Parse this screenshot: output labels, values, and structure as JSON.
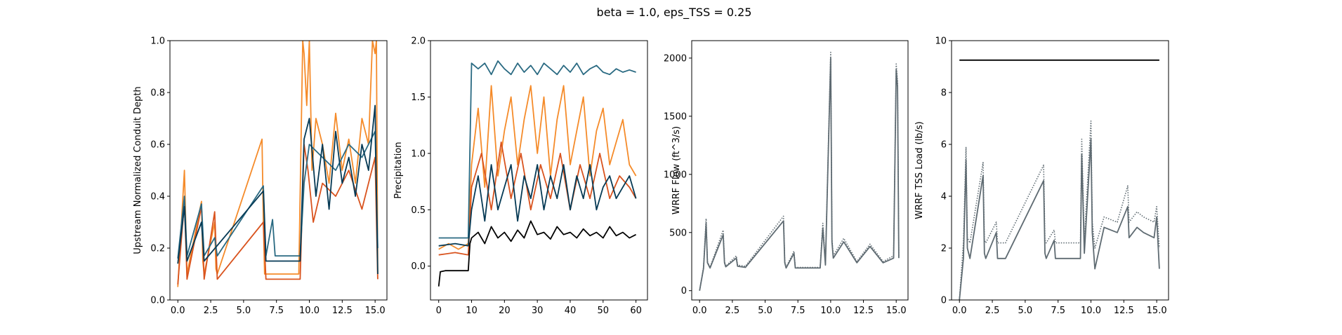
{
  "figure": {
    "title": "beta = 1.0, eps_TSS = 0.25"
  },
  "colors": {
    "orange": "#f58b2a",
    "dark_orange": "#d9531e",
    "teal": "#2a6a82",
    "navy": "#063a55",
    "black": "#000000",
    "gray": "#5f6b72"
  },
  "chart_data": [
    {
      "type": "line",
      "ylabel": "Upstream Normalized Conduit Depth",
      "xlabel": "",
      "xlim": [
        -0.6,
        15.9
      ],
      "ylim": [
        0.0,
        1.0
      ],
      "xticks": [
        0.0,
        2.5,
        5.0,
        7.5,
        10.0,
        12.5,
        15.0
      ],
      "xtick_labels": [
        "0.0",
        "2.5",
        "5.0",
        "7.5",
        "10.0",
        "12.5",
        "15.0"
      ],
      "yticks": [
        0.0,
        0.2,
        0.4,
        0.6,
        0.8,
        1.0
      ],
      "ytick_labels": [
        "0.0",
        "0.2",
        "0.4",
        "0.6",
        "0.8",
        "1.0"
      ],
      "series": [
        {
          "color_key": "orange",
          "style": "solid",
          "x": [
            0.0,
            0.5,
            0.6,
            0.7,
            1.8,
            1.9,
            2.0,
            2.8,
            2.9,
            3.0,
            6.4,
            6.5,
            6.6,
            9.2,
            9.5,
            9.6,
            9.8,
            10.0,
            10.2,
            10.5,
            11.0,
            11.5,
            12.0,
            12.5,
            13.0,
            13.5,
            14.0,
            14.5,
            14.8,
            15.0,
            15.1,
            15.2
          ],
          "y": [
            0.05,
            0.5,
            0.3,
            0.1,
            0.38,
            0.15,
            0.1,
            0.3,
            0.12,
            0.1,
            0.62,
            0.3,
            0.1,
            0.1,
            1.0,
            0.95,
            0.75,
            1.0,
            0.5,
            0.7,
            0.6,
            0.45,
            0.72,
            0.5,
            0.62,
            0.45,
            0.7,
            0.6,
            1.0,
            0.95,
            1.0,
            0.1
          ]
        },
        {
          "color_key": "dark_orange",
          "style": "solid",
          "x": [
            0.0,
            0.5,
            0.7,
            1.8,
            2.0,
            2.8,
            3.0,
            6.5,
            6.7,
            9.3,
            9.6,
            9.9,
            10.3,
            11.0,
            12.0,
            13.0,
            14.0,
            15.0,
            15.2
          ],
          "y": [
            0.06,
            0.38,
            0.08,
            0.36,
            0.08,
            0.34,
            0.08,
            0.3,
            0.08,
            0.08,
            0.6,
            0.5,
            0.3,
            0.45,
            0.4,
            0.5,
            0.35,
            0.55,
            0.08
          ]
        },
        {
          "color_key": "teal",
          "style": "solid",
          "x": [
            0.0,
            0.5,
            0.7,
            1.8,
            2.0,
            2.8,
            3.0,
            6.5,
            6.7,
            7.2,
            7.4,
            9.3,
            9.6,
            10.0,
            11.0,
            12.0,
            13.0,
            14.0,
            15.0,
            15.2
          ],
          "y": [
            0.16,
            0.4,
            0.17,
            0.37,
            0.17,
            0.24,
            0.17,
            0.44,
            0.17,
            0.31,
            0.17,
            0.17,
            0.45,
            0.6,
            0.55,
            0.5,
            0.6,
            0.55,
            0.65,
            0.2
          ]
        },
        {
          "color_key": "navy",
          "style": "solid",
          "x": [
            0.0,
            0.5,
            0.7,
            1.8,
            2.0,
            6.5,
            6.7,
            9.3,
            9.6,
            10.0,
            10.5,
            11.0,
            11.5,
            12.0,
            12.5,
            13.0,
            13.5,
            14.0,
            14.5,
            15.0,
            15.2
          ],
          "y": [
            0.14,
            0.36,
            0.15,
            0.3,
            0.15,
            0.42,
            0.15,
            0.15,
            0.62,
            0.7,
            0.4,
            0.6,
            0.35,
            0.65,
            0.45,
            0.55,
            0.4,
            0.6,
            0.5,
            0.75,
            0.1
          ]
        }
      ]
    },
    {
      "type": "line",
      "ylabel": "Precipitation",
      "xlabel": "",
      "xlim": [
        -2.5,
        63.5
      ],
      "ylim": [
        -0.3,
        2.0
      ],
      "xticks": [
        0,
        10,
        20,
        30,
        40,
        50,
        60
      ],
      "xtick_labels": [
        "0",
        "10",
        "20",
        "30",
        "40",
        "50",
        "60"
      ],
      "yticks": [
        0.0,
        0.5,
        1.0,
        1.5,
        2.0
      ],
      "ytick_labels": [
        "0.0",
        "0.5",
        "1.0",
        "1.5",
        "2.0"
      ],
      "series": [
        {
          "color_key": "orange",
          "style": "solid",
          "x": [
            0,
            3,
            6,
            9,
            10,
            12,
            14,
            16,
            18,
            20,
            22,
            24,
            26,
            28,
            30,
            32,
            34,
            36,
            38,
            40,
            42,
            44,
            46,
            48,
            50,
            52,
            54,
            56,
            58,
            60
          ],
          "y": [
            0.15,
            0.2,
            0.15,
            0.2,
            0.9,
            1.4,
            0.7,
            1.6,
            0.8,
            1.2,
            1.5,
            0.9,
            1.3,
            1.6,
            1.0,
            1.5,
            0.8,
            1.3,
            1.6,
            0.9,
            1.2,
            1.5,
            0.8,
            1.2,
            1.4,
            0.9,
            1.1,
            1.3,
            0.9,
            0.8
          ]
        },
        {
          "color_key": "dark_orange",
          "style": "solid",
          "x": [
            0,
            5,
            9,
            10,
            13,
            16,
            19,
            22,
            25,
            28,
            31,
            34,
            37,
            40,
            43,
            46,
            49,
            52,
            55,
            58,
            60
          ],
          "y": [
            0.1,
            0.12,
            0.1,
            0.7,
            1.0,
            0.5,
            1.1,
            0.6,
            1.0,
            0.5,
            0.9,
            0.6,
            1.0,
            0.5,
            0.9,
            0.6,
            1.0,
            0.6,
            0.8,
            0.7,
            0.6
          ]
        },
        {
          "color_key": "teal",
          "style": "solid",
          "x": [
            0,
            5,
            9,
            10,
            12,
            14,
            16,
            18,
            20,
            22,
            24,
            26,
            28,
            30,
            32,
            34,
            36,
            38,
            40,
            42,
            44,
            46,
            48,
            50,
            52,
            54,
            56,
            58,
            60
          ],
          "y": [
            0.25,
            0.25,
            0.25,
            1.8,
            1.75,
            1.8,
            1.7,
            1.82,
            1.75,
            1.7,
            1.8,
            1.72,
            1.78,
            1.7,
            1.8,
            1.75,
            1.7,
            1.78,
            1.72,
            1.8,
            1.7,
            1.75,
            1.78,
            1.72,
            1.7,
            1.75,
            1.72,
            1.74,
            1.72
          ]
        },
        {
          "color_key": "navy",
          "style": "solid",
          "x": [
            0,
            5,
            9,
            10,
            12,
            14,
            16,
            18,
            20,
            22,
            24,
            26,
            28,
            30,
            32,
            34,
            36,
            38,
            40,
            42,
            44,
            46,
            48,
            50,
            52,
            54,
            56,
            58,
            60
          ],
          "y": [
            0.18,
            0.2,
            0.18,
            0.5,
            0.8,
            0.4,
            0.9,
            0.5,
            0.7,
            0.9,
            0.4,
            0.8,
            0.6,
            0.9,
            0.5,
            0.8,
            0.6,
            0.9,
            0.5,
            0.8,
            0.6,
            0.9,
            0.5,
            0.7,
            0.8,
            0.6,
            0.7,
            0.8,
            0.6
          ]
        },
        {
          "color_key": "black",
          "style": "solid",
          "x": [
            0,
            0.5,
            2,
            5,
            9,
            9.5,
            10,
            12,
            14,
            16,
            18,
            20,
            22,
            24,
            26,
            28,
            30,
            32,
            34,
            36,
            38,
            40,
            42,
            44,
            46,
            48,
            50,
            52,
            54,
            56,
            58,
            60
          ],
          "y": [
            -0.18,
            -0.05,
            -0.04,
            -0.04,
            -0.04,
            0.2,
            0.25,
            0.3,
            0.2,
            0.35,
            0.25,
            0.3,
            0.22,
            0.32,
            0.25,
            0.4,
            0.28,
            0.3,
            0.24,
            0.35,
            0.28,
            0.3,
            0.25,
            0.33,
            0.27,
            0.3,
            0.25,
            0.35,
            0.27,
            0.3,
            0.25,
            0.28
          ]
        }
      ]
    },
    {
      "type": "line",
      "ylabel": "WRRF Flow (ft^3/s)",
      "xlabel": "",
      "xlim": [
        -0.6,
        15.9
      ],
      "ylim": [
        -80,
        2150
      ],
      "xticks": [
        0.0,
        2.5,
        5.0,
        7.5,
        10.0,
        12.5,
        15.0
      ],
      "xtick_labels": [
        "0.0",
        "2.5",
        "5.0",
        "7.5",
        "10.0",
        "12.5",
        "15.0"
      ],
      "yticks": [
        0,
        500,
        1000,
        1500,
        2000
      ],
      "ytick_labels": [
        "0",
        "500",
        "1000",
        "1500",
        "2000"
      ],
      "series": [
        {
          "color_key": "gray",
          "style": "dotted",
          "x": [
            0.0,
            0.3,
            0.5,
            0.6,
            0.8,
            1.8,
            1.9,
            2.0,
            2.8,
            2.9,
            3.5,
            6.4,
            6.5,
            6.6,
            7.2,
            7.3,
            9.2,
            9.4,
            9.6,
            10.0,
            10.1,
            10.2,
            11.0,
            12.0,
            13.0,
            14.0,
            14.8,
            15.0,
            15.1,
            15.2
          ],
          "y": [
            0,
            200,
            620,
            250,
            200,
            520,
            250,
            210,
            300,
            220,
            210,
            640,
            250,
            200,
            340,
            200,
            200,
            580,
            230,
            2050,
            450,
            300,
            450,
            250,
            400,
            250,
            300,
            1950,
            1800,
            300
          ]
        },
        {
          "color_key": "gray",
          "style": "solid",
          "x": [
            0.0,
            0.3,
            0.5,
            0.6,
            0.8,
            1.8,
            1.9,
            2.0,
            2.8,
            2.9,
            3.5,
            6.4,
            6.5,
            6.6,
            7.2,
            7.3,
            9.2,
            9.4,
            9.6,
            10.0,
            10.1,
            10.2,
            11.0,
            12.0,
            13.0,
            14.0,
            14.8,
            15.0,
            15.1,
            15.2
          ],
          "y": [
            0,
            190,
            580,
            240,
            195,
            480,
            240,
            205,
            280,
            210,
            200,
            600,
            240,
            195,
            320,
            195,
            195,
            540,
            220,
            2000,
            420,
            280,
            420,
            240,
            380,
            240,
            280,
            1900,
            1750,
            280
          ]
        }
      ]
    },
    {
      "type": "line",
      "ylabel": "WRRF TSS Load (lb/s)",
      "xlabel": "",
      "xlim": [
        -0.6,
        15.9
      ],
      "ylim": [
        0,
        10
      ],
      "xticks": [
        0.0,
        2.5,
        5.0,
        7.5,
        10.0,
        12.5,
        15.0
      ],
      "xtick_labels": [
        "0.0",
        "2.5",
        "5.0",
        "7.5",
        "10.0",
        "12.5",
        "15.0"
      ],
      "yticks": [
        0,
        2,
        4,
        6,
        8,
        10
      ],
      "ytick_labels": [
        "0",
        "2",
        "4",
        "6",
        "8",
        "10"
      ],
      "series": [
        {
          "color_key": "black",
          "style": "solid",
          "x": [
            0.0,
            15.2
          ],
          "y": [
            9.25,
            9.25
          ]
        },
        {
          "color_key": "gray",
          "style": "dotted",
          "x": [
            0.0,
            0.3,
            0.5,
            0.6,
            0.8,
            1.8,
            1.9,
            2.0,
            2.8,
            2.9,
            3.5,
            6.4,
            6.5,
            6.6,
            7.2,
            7.3,
            9.2,
            9.3,
            9.5,
            10.0,
            10.1,
            10.3,
            11.0,
            12.0,
            12.8,
            12.9,
            13.5,
            14.0,
            14.8,
            15.0,
            15.2
          ],
          "y": [
            0.0,
            2.2,
            5.9,
            2.4,
            2.2,
            5.3,
            2.3,
            2.2,
            3.0,
            2.2,
            2.2,
            5.2,
            2.3,
            2.2,
            2.7,
            2.2,
            2.2,
            6.2,
            2.3,
            6.9,
            3.0,
            2.0,
            3.2,
            3.0,
            4.4,
            3.0,
            3.4,
            3.2,
            3.0,
            3.6,
            2.0
          ]
        },
        {
          "color_key": "gray",
          "style": "solid",
          "x": [
            0.0,
            0.3,
            0.5,
            0.6,
            0.8,
            1.8,
            1.9,
            2.0,
            2.8,
            2.9,
            3.5,
            6.4,
            6.5,
            6.6,
            7.2,
            7.3,
            9.2,
            9.3,
            9.5,
            10.0,
            10.1,
            10.3,
            11.0,
            12.0,
            12.8,
            12.9,
            13.5,
            14.0,
            14.8,
            15.0,
            15.2
          ],
          "y": [
            0.0,
            1.6,
            5.4,
            2.0,
            1.6,
            4.8,
            1.8,
            1.6,
            2.6,
            1.6,
            1.6,
            4.6,
            1.8,
            1.6,
            2.3,
            1.6,
            1.6,
            5.6,
            1.8,
            6.2,
            2.6,
            1.2,
            2.8,
            2.6,
            3.6,
            2.4,
            2.8,
            2.6,
            2.4,
            3.2,
            1.2
          ]
        }
      ]
    }
  ]
}
